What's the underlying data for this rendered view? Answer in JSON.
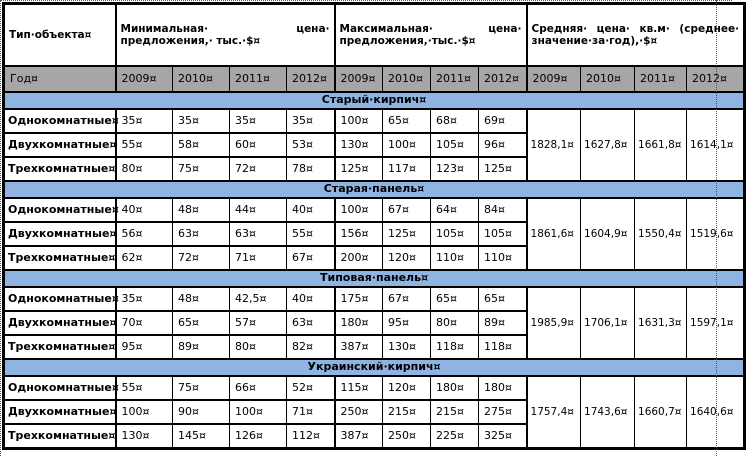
{
  "colors": {
    "section_band_blue": "#8fb4e2",
    "year_row_grey": "#a6a6a6",
    "table_border": "#000000",
    "page_background": "#ffffff"
  },
  "table": {
    "type_header": "Тип·объекта¤",
    "min_header": "Минимальная· цена· предложения,· тыс.·$¤",
    "max_header": "Максимальная· цена· предложения,·тыс.·$¤",
    "avg_header": "Средняя· цена· кв.м· (среднее· значение·за·год),·$¤",
    "year_label": "Год¤",
    "years": [
      "2009¤",
      "2010¤",
      "2011¤",
      "2012¤"
    ],
    "sections": [
      {
        "title": "Старый·кирпич¤",
        "rows": [
          {
            "label": "Однокомнатные¤",
            "min": [
              "35¤",
              "35¤",
              "35¤",
              "35¤"
            ],
            "max": [
              "100¤",
              "65¤",
              "68¤",
              "69¤"
            ]
          },
          {
            "label": "Двухкомнатные¤",
            "min": [
              "55¤",
              "58¤",
              "60¤",
              "53¤"
            ],
            "max": [
              "130¤",
              "100¤",
              "105¤",
              "96¤"
            ]
          },
          {
            "label": "Трехкомнатные¤",
            "min": [
              "80¤",
              "75¤",
              "72¤",
              "78¤"
            ],
            "max": [
              "125¤",
              "117¤",
              "123¤",
              "125¤"
            ]
          }
        ],
        "avg": [
          "1828,1¤",
          "1627,8¤",
          "1661,8¤",
          "1614,1¤"
        ]
      },
      {
        "title": "Старая·панель¤",
        "rows": [
          {
            "label": "Однокомнатные¤",
            "min": [
              "40¤",
              "48¤",
              "44¤",
              "40¤"
            ],
            "max": [
              "100¤",
              "67¤",
              "64¤",
              "84¤"
            ]
          },
          {
            "label": "Двухкомнатные¤",
            "min": [
              "56¤",
              "63¤",
              "63¤",
              "55¤"
            ],
            "max": [
              "156¤",
              "125¤",
              "105¤",
              "105¤"
            ]
          },
          {
            "label": "Трехкомнатные¤",
            "min": [
              "62¤",
              "72¤",
              "71¤",
              "67¤"
            ],
            "max": [
              "200¤",
              "120¤",
              "110¤",
              "110¤"
            ]
          }
        ],
        "avg": [
          "1861,6¤",
          "1604,9¤",
          "1550,4¤",
          "1519,6¤"
        ]
      },
      {
        "title": "Типовая·панель¤",
        "rows": [
          {
            "label": "Однокомнатные¤",
            "min": [
              "35¤",
              "48¤",
              "42,5¤",
              "40¤"
            ],
            "max": [
              "175¤",
              "67¤",
              "65¤",
              "65¤"
            ]
          },
          {
            "label": "Двухкомнатные¤",
            "min": [
              "70¤",
              "65¤",
              "57¤",
              "63¤"
            ],
            "max": [
              "180¤",
              "95¤",
              "80¤",
              "89¤"
            ]
          },
          {
            "label": "Трехкомнатные¤",
            "min": [
              "95¤",
              "89¤",
              "80¤",
              "82¤"
            ],
            "max": [
              "387¤",
              "130¤",
              "118¤",
              "118¤"
            ]
          }
        ],
        "avg": [
          "1985,9¤",
          "1706,1¤",
          "1631,3¤",
          "1597,1¤"
        ]
      },
      {
        "title": "Украинский·кирпич¤",
        "rows": [
          {
            "label": "Однокомнатные¤",
            "min": [
              "55¤",
              "75¤",
              "66¤",
              "52¤"
            ],
            "max": [
              "115¤",
              "120¤",
              "180¤",
              "180¤"
            ]
          },
          {
            "label": "Двухкомнатные¤",
            "min": [
              "100¤",
              "90¤",
              "100¤",
              "71¤"
            ],
            "max": [
              "250¤",
              "215¤",
              "215¤",
              "275¤"
            ]
          },
          {
            "label": "Трехкомнатные¤",
            "min": [
              "130¤",
              "145¤",
              "126¤",
              "112¤"
            ],
            "max": [
              "387¤",
              "250¤",
              "225¤",
              "325¤"
            ]
          }
        ],
        "avg": [
          "1757,4¤",
          "1743,6¤",
          "1660,7¤",
          "1640,6¤"
        ]
      }
    ]
  }
}
